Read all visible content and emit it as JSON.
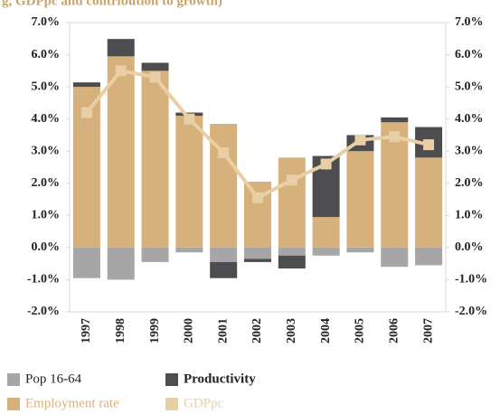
{
  "chart_data": {
    "type": "bar",
    "title": "g, GDPpc and contribution to growth)",
    "categories": [
      "1997",
      "1998",
      "1999",
      "2000",
      "2001",
      "2002",
      "2003",
      "2004",
      "2005",
      "2006",
      "2007"
    ],
    "series": [
      {
        "name": "Pop 16-64",
        "color": "#a6a6a6",
        "values": [
          -0.95,
          -1.0,
          -0.45,
          -0.15,
          -0.45,
          -0.35,
          -0.25,
          -0.25,
          -0.15,
          -0.6,
          -0.55
        ]
      },
      {
        "name": "Productivity",
        "color": "#4d4d4f",
        "values": [
          0.14,
          0.54,
          0.25,
          0.1,
          -0.5,
          -0.1,
          -0.4,
          1.9,
          0.5,
          0.15,
          0.95
        ]
      },
      {
        "name": "Employment rate",
        "color": "#d6b17b",
        "values": [
          5.0,
          5.95,
          5.5,
          4.1,
          3.85,
          2.05,
          2.8,
          0.95,
          3.0,
          3.9,
          2.8
        ]
      },
      {
        "name": "GDPpc",
        "color": "#e8cfa6",
        "type": "line",
        "values": [
          4.2,
          5.5,
          5.3,
          4.0,
          2.95,
          1.55,
          2.1,
          2.6,
          3.35,
          3.45,
          3.2
        ]
      }
    ],
    "ylim": [
      -2,
      7
    ],
    "yticks": [
      {
        "value": -2,
        "label": "-2.0%"
      },
      {
        "value": -1,
        "label": "-1.0%"
      },
      {
        "value": 0,
        "label": "0.0%"
      },
      {
        "value": 1,
        "label": "1.0%"
      },
      {
        "value": 2,
        "label": "2.0%"
      },
      {
        "value": 3,
        "label": "3.0%"
      },
      {
        "value": 4,
        "label": "4.0%"
      },
      {
        "value": 5,
        "label": "5.0%"
      },
      {
        "value": 6,
        "label": "6.0%"
      },
      {
        "value": 7,
        "label": "7.0%"
      }
    ],
    "y2lim": [
      -2,
      7
    ],
    "y2ticks": [
      {
        "value": -2,
        "label": "-2.0%"
      },
      {
        "value": -1,
        "label": "-1.0%"
      },
      {
        "value": 0,
        "label": "0.0%"
      },
      {
        "value": 1,
        "label": "1.0%"
      },
      {
        "value": 2,
        "label": "2.0%"
      },
      {
        "value": 3,
        "label": "3.0%"
      },
      {
        "value": 4,
        "label": "4.0%"
      },
      {
        "value": 5,
        "label": "5.0%"
      },
      {
        "value": 6,
        "label": "6.0%"
      },
      {
        "value": 7,
        "label": "7.0%"
      }
    ]
  }
}
